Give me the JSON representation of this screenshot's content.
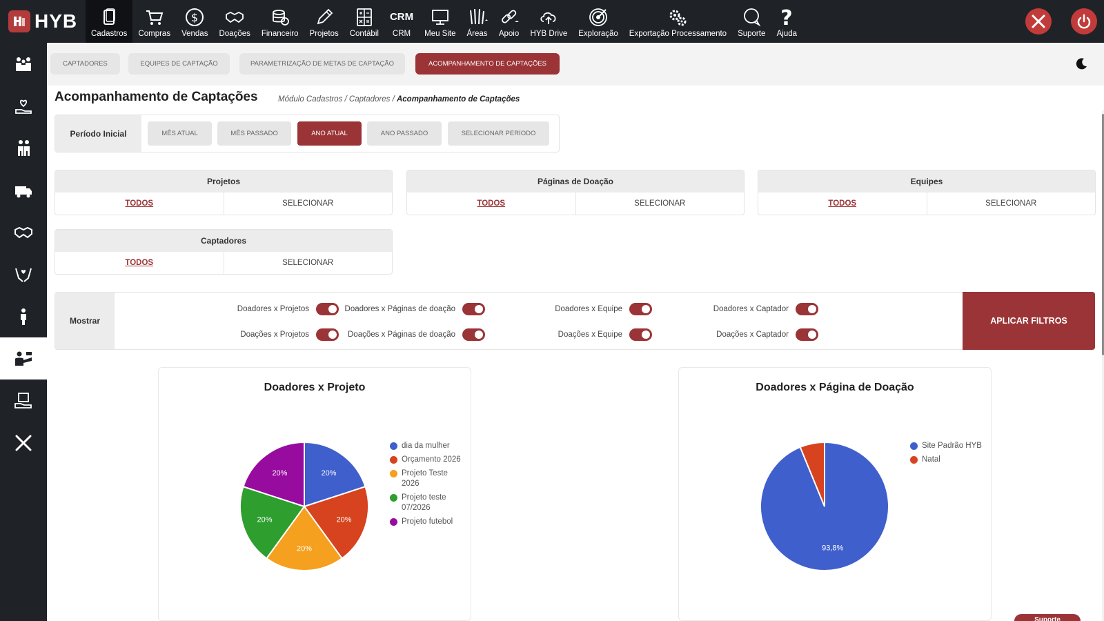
{
  "brand": {
    "name": "HYB"
  },
  "nav": [
    {
      "label": "Cadastros",
      "icon": "cadastros-icon",
      "active": true
    },
    {
      "label": "Compras",
      "icon": "cart-icon"
    },
    {
      "label": "Vendas",
      "icon": "dollar-icon"
    },
    {
      "label": "Doações",
      "icon": "handshake-icon"
    },
    {
      "label": "Financeiro",
      "icon": "coins-icon"
    },
    {
      "label": "Projetos",
      "icon": "pencil-icon"
    },
    {
      "label": "Contábil",
      "icon": "calculator-icon"
    },
    {
      "label": "CRM",
      "icon": "crm-icon",
      "text_icon": "CRM"
    },
    {
      "label": "Meu Site",
      "icon": "monitor-icon"
    },
    {
      "label": "Áreas",
      "icon": "areas-icon"
    },
    {
      "label": "Apoio",
      "icon": "link-icon"
    },
    {
      "label": "HYB Drive",
      "icon": "cloud-upload-icon"
    },
    {
      "label": "Exploração",
      "icon": "target-icon"
    },
    {
      "label": "Exportação Processamento",
      "icon": "gears-icon"
    },
    {
      "label": "Suporte",
      "icon": "chat-icon"
    },
    {
      "label": "Ajuda",
      "icon": "question-icon"
    }
  ],
  "tabs": [
    {
      "label": "CAPTADORES"
    },
    {
      "label": "EQUIPES DE CAPTAÇÃO"
    },
    {
      "label": "PARAMETRIZAÇÃO DE METAS DE CAPTAÇÃO"
    },
    {
      "label": "ACOMPANHAMENTO DE CAPTAÇÕES",
      "active": true
    }
  ],
  "page": {
    "title": "Acompanhamento de Captações",
    "breadcrumb": [
      "Módulo Cadastros",
      "Captadores",
      "Acompanhamento de Captações"
    ]
  },
  "period": {
    "label": "Período Inicial",
    "options": [
      "MÊS ATUAL",
      "MÊS PASSADO",
      "ANO ATUAL",
      "ANO PASSADO",
      "SELECIONAR PERÍODO"
    ],
    "selected": "ANO ATUAL"
  },
  "filters": [
    {
      "title": "Projetos",
      "all": "TODOS",
      "select": "SELECIONAR"
    },
    {
      "title": "Páginas de Doação",
      "all": "TODOS",
      "select": "SELECIONAR"
    },
    {
      "title": "Equipes",
      "all": "TODOS",
      "select": "SELECIONAR"
    },
    {
      "title": "Captadores",
      "all": "TODOS",
      "select": "SELECIONAR"
    }
  ],
  "show": {
    "label": "Mostrar",
    "toggles": [
      {
        "label": "Doadores x Projetos",
        "on": true
      },
      {
        "label": "Doadores x Páginas de doação",
        "on": true
      },
      {
        "label": "Doadores x Equipe",
        "on": true
      },
      {
        "label": "Doadores x Captador",
        "on": true
      },
      {
        "label": "Doações x Projetos",
        "on": true
      },
      {
        "label": "Doações x Páginas de doação",
        "on": true
      },
      {
        "label": "Doações x Equipe",
        "on": true
      },
      {
        "label": "Doações x Captador",
        "on": true
      }
    ],
    "apply": "APLICAR FILTROS"
  },
  "colors": {
    "accent": "#9b3436",
    "topbar": "#1f2328",
    "blue": "#3f5fcc",
    "red": "#d6431e",
    "orange": "#f5a01e",
    "green": "#2e9e2e",
    "purple": "#970c9e"
  },
  "chart_data": [
    {
      "type": "pie",
      "title": "Doadores x Projeto",
      "labels": [
        "dia da mulher",
        "Orçamento 2026",
        "Projeto Teste 2026",
        "Projeto teste 07/2026",
        "Projeto futebol"
      ],
      "values": [
        20,
        20,
        20,
        20,
        20
      ],
      "data_labels": [
        "20%",
        "20%",
        "20%",
        "20%",
        "20%"
      ],
      "colors": [
        "#3f5fcc",
        "#d6431e",
        "#f5a01e",
        "#2e9e2e",
        "#970c9e"
      ],
      "legend": "right"
    },
    {
      "type": "pie",
      "title": "Doadores x Página de Doação",
      "labels": [
        "Site Padrão HYB",
        "Natal"
      ],
      "values": [
        93.8,
        6.2
      ],
      "data_labels": [
        "93,8%",
        ""
      ],
      "colors": [
        "#3f5fcc",
        "#d6431e"
      ],
      "legend": "right"
    }
  ],
  "support_tab": "Suporte"
}
